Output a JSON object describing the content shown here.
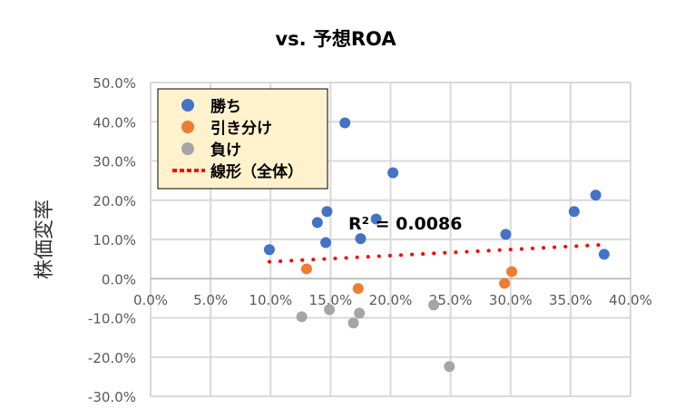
{
  "chart_data": {
    "type": "scatter",
    "title": "vs. 予想ROA",
    "xlabel": "",
    "ylabel": "株価変率",
    "xlim": [
      0,
      40
    ],
    "ylim": [
      -30,
      50
    ],
    "x_ticks": [
      "0.0%",
      "5.0%",
      "10.0%",
      "15.0%",
      "20.0%",
      "25.0%",
      "30.0%",
      "35.0%",
      "40.0%"
    ],
    "y_ticks": [
      "50.0%",
      "40.0%",
      "30.0%",
      "20.0%",
      "10.0%",
      "0.0%",
      "-10.0%",
      "-20.0%",
      "-30.0%"
    ],
    "grid": true,
    "legend_position": "top-left",
    "series": [
      {
        "name": "勝ち",
        "color": "#4472C4",
        "points": [
          [
            9.9,
            7.4
          ],
          [
            16.2,
            39.7
          ],
          [
            20.2,
            27.0
          ],
          [
            14.7,
            17.1
          ],
          [
            13.9,
            14.3
          ],
          [
            14.6,
            9.2
          ],
          [
            17.5,
            10.2
          ],
          [
            18.8,
            15.2
          ],
          [
            29.6,
            11.3
          ],
          [
            35.3,
            17.1
          ],
          [
            37.1,
            21.3
          ],
          [
            37.8,
            6.2
          ]
        ]
      },
      {
        "name": "引き分け",
        "color": "#ED7D31",
        "points": [
          [
            13.0,
            2.5
          ],
          [
            17.3,
            -2.5
          ],
          [
            30.1,
            1.8
          ],
          [
            29.5,
            -1.2
          ]
        ]
      },
      {
        "name": "負け",
        "color": "#A5A5A5",
        "points": [
          [
            12.6,
            -9.7
          ],
          [
            14.9,
            -7.9
          ],
          [
            17.4,
            -8.8
          ],
          [
            16.9,
            -11.3
          ],
          [
            23.6,
            -6.7
          ],
          [
            24.9,
            -22.4
          ]
        ]
      }
    ],
    "trendline": {
      "name": "線形（全体）",
      "color": "#FF0000",
      "x": [
        9.9,
        37.5
      ],
      "y": [
        4.3,
        8.6
      ]
    },
    "annotation": "R² = 0.0086"
  }
}
